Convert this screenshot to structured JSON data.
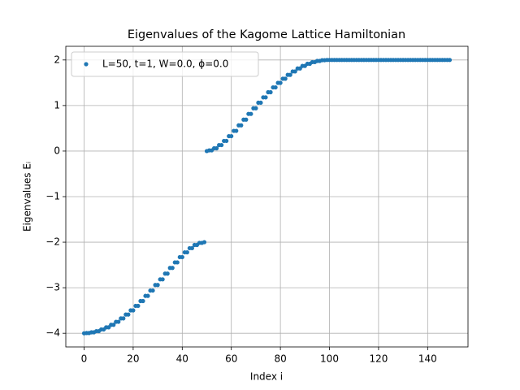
{
  "chart_data": {
    "type": "scatter",
    "title": "Eigenvalues of the Kagome Lattice Hamiltonian",
    "xlabel": "Index i",
    "ylabel": "Eigenvalues Eᵢ",
    "xlim": [
      -7.45,
      156.45
    ],
    "ylim": [
      -4.3,
      2.3
    ],
    "xticks": [
      0,
      20,
      40,
      60,
      80,
      100,
      120,
      140
    ],
    "yticks": [
      {
        "value": -4,
        "label": "−4"
      },
      {
        "value": -3,
        "label": "−3"
      },
      {
        "value": -2,
        "label": "−2"
      },
      {
        "value": -1,
        "label": "−1"
      },
      0,
      1,
      2
    ],
    "grid": true,
    "legend": "upper left",
    "x": [
      0,
      1,
      2,
      3,
      4,
      5,
      6,
      7,
      8,
      9,
      10,
      11,
      12,
      13,
      14,
      15,
      16,
      17,
      18,
      19,
      20,
      21,
      22,
      23,
      24,
      25,
      26,
      27,
      28,
      29,
      30,
      31,
      32,
      33,
      34,
      35,
      36,
      37,
      38,
      39,
      40,
      41,
      42,
      43,
      44,
      45,
      46,
      47,
      48,
      49,
      50,
      51,
      52,
      53,
      54,
      55,
      56,
      57,
      58,
      59,
      60,
      61,
      62,
      63,
      64,
      65,
      66,
      67,
      68,
      69,
      70,
      71,
      72,
      73,
      74,
      75,
      76,
      77,
      78,
      79,
      80,
      81,
      82,
      83,
      84,
      85,
      86,
      87,
      88,
      89,
      90,
      91,
      92,
      93,
      94,
      95,
      96,
      97,
      98,
      99,
      100,
      101,
      102,
      103,
      104,
      105,
      106,
      107,
      108,
      109,
      110,
      111,
      112,
      113,
      114,
      115,
      116,
      117,
      118,
      119,
      120,
      121,
      122,
      123,
      124,
      125,
      126,
      127,
      128,
      129,
      130,
      131,
      132,
      133,
      134,
      135,
      136,
      137,
      138,
      139,
      140,
      141,
      142,
      143,
      144,
      145,
      146,
      147,
      148,
      149
    ],
    "series": [
      {
        "name": "L=50, t=1, W=0.0, ϕ=0.0",
        "color": "#1f77b4",
        "values": [
          -4,
          -3.995,
          -3.995,
          -3.979,
          -3.979,
          -3.953,
          -3.953,
          -3.916,
          -3.916,
          -3.87,
          -3.87,
          -3.814,
          -3.814,
          -3.748,
          -3.748,
          -3.673,
          -3.673,
          -3.589,
          -3.589,
          -3.497,
          -3.497,
          -3.398,
          -3.398,
          -3.292,
          -3.292,
          -3.179,
          -3.179,
          -3.062,
          -3.062,
          -2.94,
          -2.94,
          -2.816,
          -2.816,
          -2.69,
          -2.69,
          -2.565,
          -2.565,
          -2.444,
          -2.444,
          -2.328,
          -2.328,
          -2.223,
          -2.223,
          -2.132,
          -2.132,
          -2.061,
          -2.061,
          -2.016,
          -2.016,
          -2,
          0,
          0.016,
          0.016,
          0.061,
          0.061,
          0.132,
          0.132,
          0.223,
          0.223,
          0.328,
          0.328,
          0.444,
          0.444,
          0.565,
          0.565,
          0.69,
          0.69,
          0.816,
          0.816,
          0.94,
          0.94,
          1.062,
          1.062,
          1.179,
          1.179,
          1.292,
          1.292,
          1.398,
          1.398,
          1.497,
          1.497,
          1.589,
          1.589,
          1.673,
          1.673,
          1.748,
          1.748,
          1.814,
          1.814,
          1.87,
          1.87,
          1.916,
          1.916,
          1.953,
          1.953,
          1.979,
          1.979,
          1.995,
          1.995,
          2,
          2,
          2,
          2,
          2,
          2,
          2,
          2,
          2,
          2,
          2,
          2,
          2,
          2,
          2,
          2,
          2,
          2,
          2,
          2,
          2,
          2,
          2,
          2,
          2,
          2,
          2,
          2,
          2,
          2,
          2,
          2,
          2,
          2,
          2,
          2,
          2,
          2,
          2,
          2,
          2,
          2,
          2,
          2,
          2,
          2,
          2,
          2,
          2,
          2,
          2
        ]
      }
    ]
  }
}
